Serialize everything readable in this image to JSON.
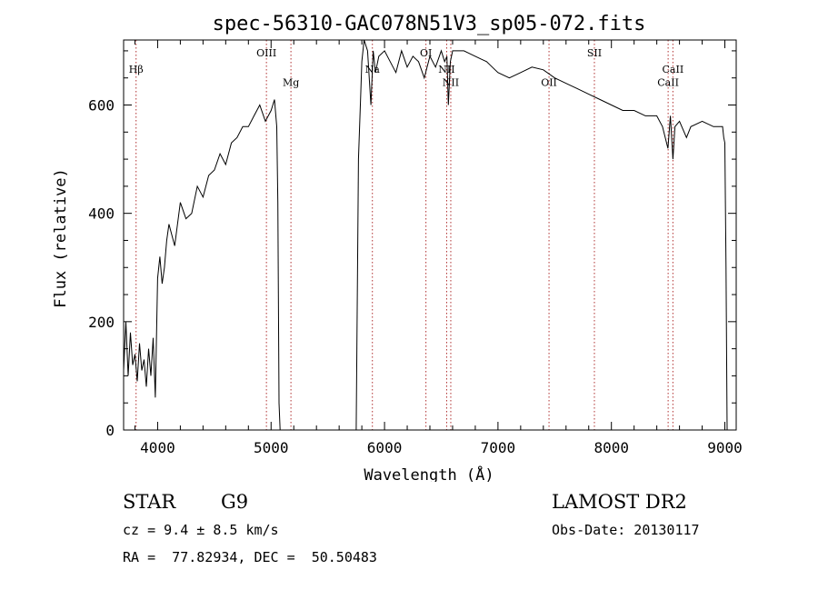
{
  "chart_data": {
    "type": "line",
    "title": "spec-56310-GAC078N51V3_sp05-072.fits",
    "xlabel": "Wavelength (Å)",
    "ylabel": "Flux (relative)",
    "xlim": [
      3700,
      9100
    ],
    "ylim": [
      0,
      720
    ],
    "xticks": [
      4000,
      5000,
      6000,
      7000,
      8000,
      9000
    ],
    "yticks": [
      0,
      200,
      400,
      600
    ],
    "xtick_labels": [
      "4000",
      "5000",
      "6000",
      "7000",
      "8000",
      "9000"
    ],
    "ytick_labels": [
      "0",
      "200",
      "400",
      "600"
    ],
    "grid": false,
    "series": [
      {
        "x": [
          3700,
          3720,
          3740,
          3760,
          3780,
          3800,
          3820,
          3840,
          3860,
          3880,
          3900,
          3920,
          3940,
          3960,
          3980,
          4000,
          4020,
          4040,
          4060,
          4080,
          4100,
          4150,
          4200,
          4250,
          4300,
          4350,
          4400,
          4450,
          4500,
          4550,
          4600,
          4650,
          4700,
          4750,
          4800,
          4850,
          4900,
          4950,
          5000,
          5030,
          5050,
          5060,
          5070,
          5080,
          5100,
          5200,
          5300,
          5400,
          5500,
          5600,
          5700,
          5750,
          5770,
          5790,
          5800,
          5820,
          5850,
          5880,
          5900,
          5920,
          5950,
          6000,
          6050,
          6100,
          6150,
          6200,
          6250,
          6300,
          6350,
          6400,
          6450,
          6500,
          6530,
          6550,
          6563,
          6580,
          6600,
          6650,
          6700,
          6750,
          6800,
          6850,
          6900,
          6950,
          7000,
          7100,
          7200,
          7300,
          7400,
          7500,
          7600,
          7700,
          7800,
          7900,
          8000,
          8100,
          8200,
          8300,
          8400,
          8450,
          8498,
          8520,
          8542,
          8560,
          8600,
          8662,
          8700,
          8800,
          8900,
          8980,
          8990,
          9000,
          9010,
          9020
        ],
        "y": [
          110,
          200,
          100,
          180,
          120,
          140,
          90,
          160,
          110,
          130,
          80,
          150,
          100,
          170,
          60,
          280,
          320,
          270,
          300,
          350,
          380,
          340,
          420,
          390,
          400,
          450,
          430,
          470,
          480,
          510,
          490,
          530,
          540,
          560,
          560,
          580,
          600,
          570,
          590,
          610,
          560,
          420,
          50,
          0,
          0,
          0,
          0,
          0,
          0,
          0,
          0,
          0,
          500,
          620,
          680,
          720,
          700,
          600,
          700,
          660,
          690,
          700,
          680,
          660,
          700,
          670,
          690,
          680,
          650,
          690,
          670,
          700,
          680,
          690,
          600,
          680,
          700,
          700,
          700,
          695,
          690,
          685,
          680,
          670,
          660,
          650,
          660,
          670,
          665,
          650,
          640,
          630,
          620,
          610,
          600,
          590,
          590,
          580,
          580,
          560,
          520,
          580,
          500,
          560,
          570,
          540,
          560,
          570,
          560,
          560,
          540,
          530,
          300,
          0
        ]
      }
    ],
    "lines": [
      {
        "label": "Hβ",
        "x": 3810,
        "label_y": 660
      },
      {
        "label": "OIII",
        "x": 4959,
        "label_y": 690
      },
      {
        "label": "Mg",
        "x": 5175,
        "label_y": 635
      },
      {
        "label": "Na",
        "x": 5893,
        "label_y": 660
      },
      {
        "label": "OI",
        "x": 6365,
        "label_y": 690
      },
      {
        "label": "NII",
        "x": 6548,
        "label_y": 660
      },
      {
        "label": "NII",
        "x": 6584,
        "label_y": 635
      },
      {
        "label": "OII",
        "x": 7450,
        "label_y": 635
      },
      {
        "label": "SII",
        "x": 7850,
        "label_y": 690
      },
      {
        "label": "CaII",
        "x": 8500,
        "label_y": 635
      },
      {
        "label": "CaII",
        "x": 8542,
        "label_y": 660
      }
    ]
  },
  "info": {
    "object_type": "STAR",
    "subclass": "G9",
    "survey": "LAMOST DR2",
    "redshift": "cz = 9.4 ± 8.5 km/s",
    "obs_date": "Obs-Date: 20130117",
    "coords": "RA =  77.82934, DEC =  50.50483"
  }
}
